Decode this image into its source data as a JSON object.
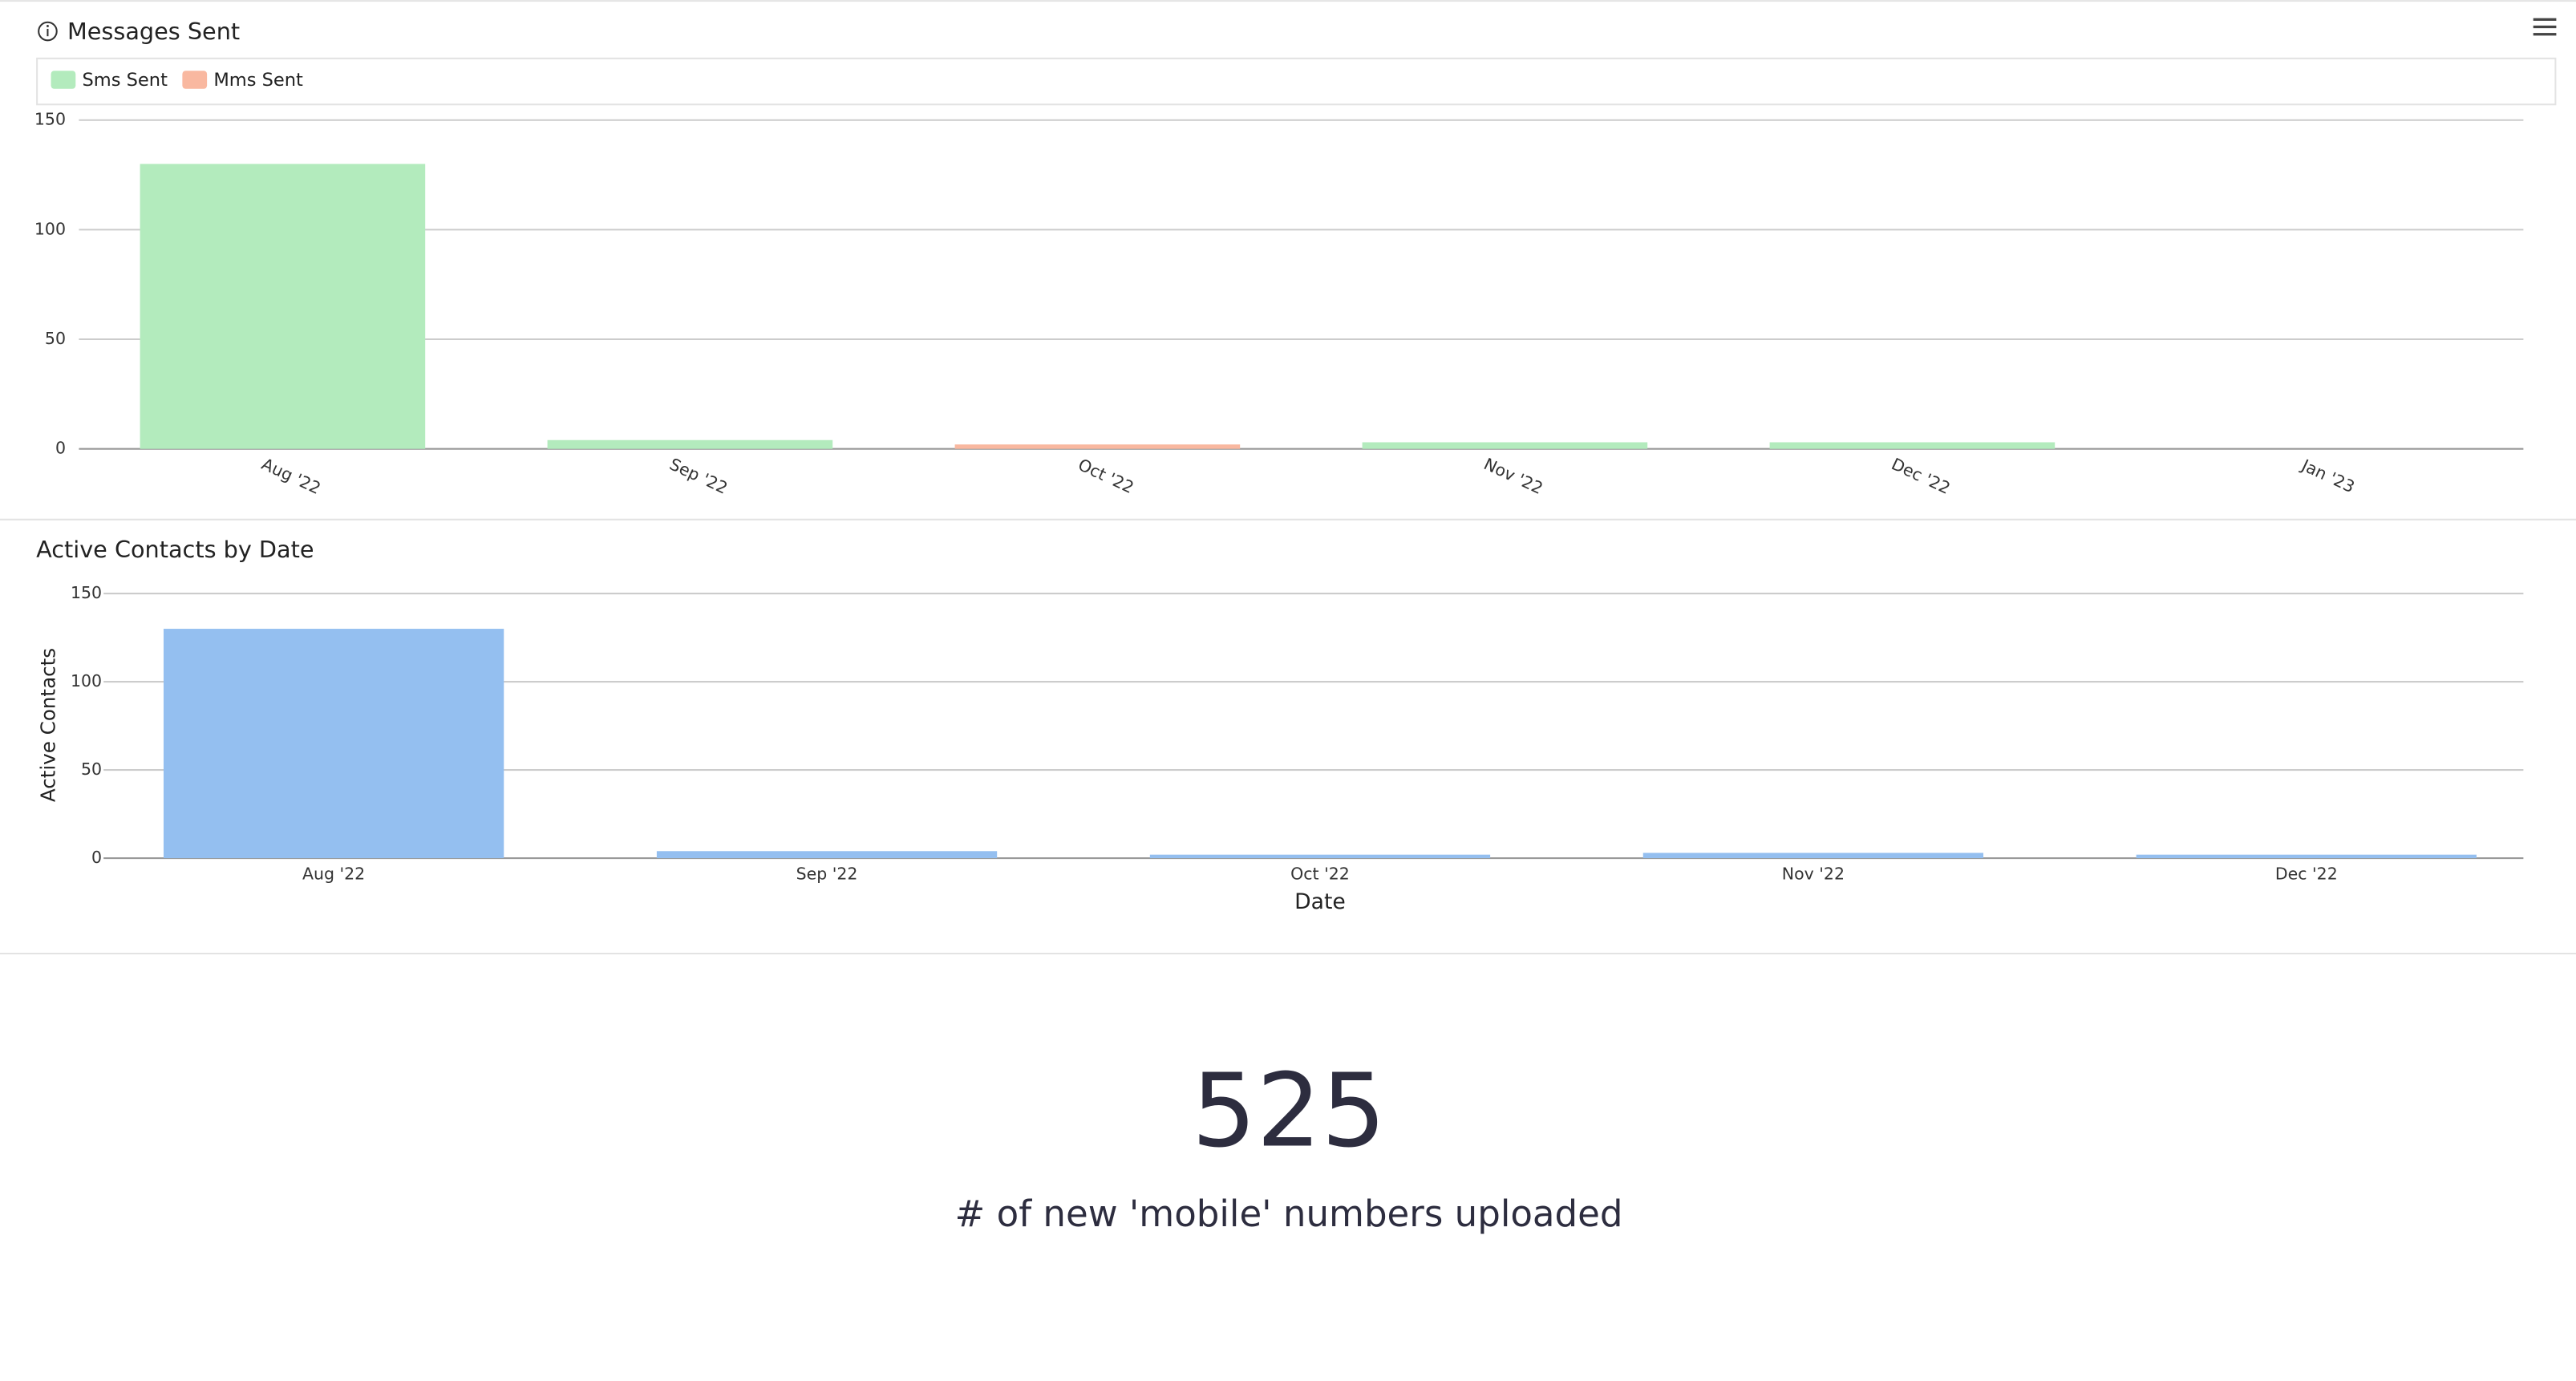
{
  "chart_data": [
    {
      "type": "bar",
      "stacked": true,
      "title": "Messages Sent",
      "categories": [
        "Aug '22",
        "Sep '22",
        "Oct '22",
        "Nov '22",
        "Dec '22",
        "Jan '23"
      ],
      "series": [
        {
          "name": "Sms Sent",
          "color": "#b3ebbd",
          "values": [
            130,
            4,
            null,
            3,
            3,
            null
          ]
        },
        {
          "name": "Mms Sent",
          "color": "#f9b8a0",
          "values": [
            null,
            null,
            2,
            null,
            null,
            null
          ]
        }
      ],
      "ylim": [
        0,
        150
      ],
      "yticks": [
        0,
        50,
        100,
        150
      ],
      "grid": true,
      "legend": "top"
    },
    {
      "type": "bar",
      "title": "Active Contacts by Date",
      "x_label": "Date",
      "y_label": "Active Contacts",
      "categories": [
        "Aug '22",
        "Sep '22",
        "Oct '22",
        "Nov '22",
        "Dec '22"
      ],
      "values": [
        130,
        4,
        2,
        3,
        2
      ],
      "color": "#94bff0",
      "ylim": [
        0,
        150
      ],
      "yticks": [
        0,
        50,
        100,
        150
      ],
      "grid": true
    }
  ],
  "kpi": {
    "value": 525,
    "label": "# of new 'mobile' numbers uploaded"
  }
}
